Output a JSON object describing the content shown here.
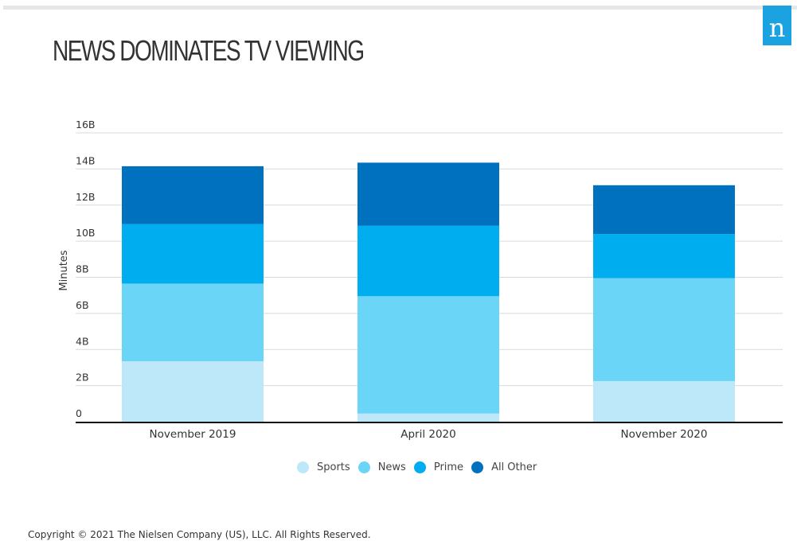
{
  "brand": {
    "logo_text": "n",
    "logo_color": "#1aa3e0"
  },
  "footer": {
    "copyright": "Copyright © 2021 The Nielsen Company (US), LLC. All Rights Reserved."
  },
  "chart_data": {
    "type": "bar",
    "stacked": true,
    "title": "NEWS DOMINATES TV VIEWING",
    "xlabel": "",
    "ylabel": "Minutes",
    "ylim": [
      0,
      16
    ],
    "y_unit": "billions",
    "yticks": [
      0,
      2,
      4,
      6,
      8,
      10,
      12,
      14,
      16
    ],
    "ytick_labels": [
      "0",
      "2B",
      "4B",
      "6B",
      "8B",
      "10B",
      "12B",
      "14B",
      "16B"
    ],
    "grid": true,
    "legend_position": "bottom-center",
    "categories": [
      "November 2019",
      "April 2020",
      "November 2020"
    ],
    "series": [
      {
        "name": "Sports",
        "color": "#bde8f9",
        "values": [
          3.35,
          0.45,
          2.25
        ]
      },
      {
        "name": "News",
        "color": "#6bd5f7",
        "values": [
          4.3,
          6.5,
          5.7
        ]
      },
      {
        "name": "Prime",
        "color": "#00adee",
        "values": [
          3.3,
          3.9,
          2.45
        ]
      },
      {
        "name": "All Other",
        "color": "#0071bf",
        "values": [
          3.2,
          3.5,
          2.7
        ]
      }
    ]
  }
}
